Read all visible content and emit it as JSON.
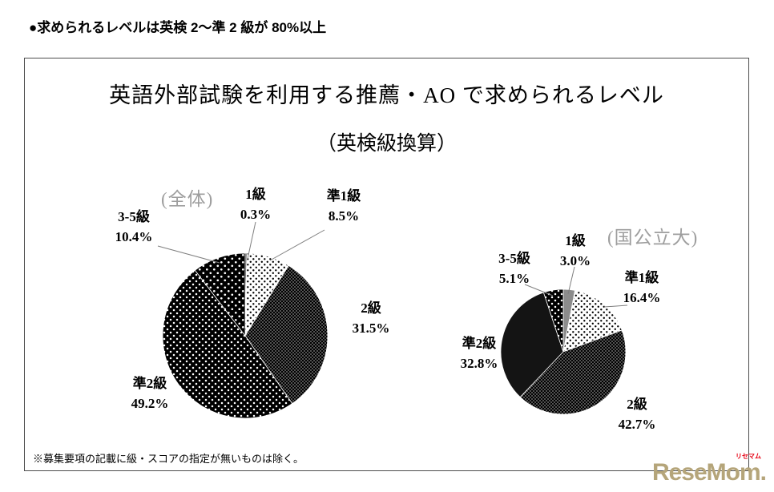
{
  "page": {
    "heading": "●求められるレベルは英検 2～準 2 級が 80%以上",
    "footnote": "※募集要項の記載に級・スコアの指定が無いものは除く。",
    "logo": {
      "text": "ReseMom.",
      "ruby": "リセマム"
    }
  },
  "chart_data": [
    {
      "type": "pie",
      "title": "英語外部試験を利用する推薦・AO で求められるレベル",
      "subtitle": "（英検級換算）",
      "group_label": "(全体)",
      "categories": [
        "1級",
        "準1級",
        "2級",
        "準2級",
        "3-5級"
      ],
      "values": [
        0.3,
        8.5,
        31.5,
        49.2,
        10.4
      ],
      "fill_styles": [
        "solid-black",
        "black-dots-on-white",
        "fine-white-dots-on-black",
        "white-dots-on-black",
        "white-dots-on-black-2"
      ],
      "legend_position": "labels-around-pie",
      "unit": "%"
    },
    {
      "type": "pie",
      "title": "英語外部試験を利用する推薦・AO で求められるレベル",
      "subtitle": "（英検級換算）",
      "group_label": "(国公立大)",
      "categories": [
        "1級",
        "準1級",
        "2級",
        "準2級",
        "3-5級"
      ],
      "values": [
        3.0,
        16.4,
        42.7,
        32.8,
        5.1
      ],
      "fill_styles": [
        "solid-gray",
        "black-dots-on-white",
        "fine-white-dots-on-black",
        "solid-black",
        "white-dots-on-black"
      ],
      "legend_position": "labels-around-pie",
      "unit": "%"
    }
  ]
}
